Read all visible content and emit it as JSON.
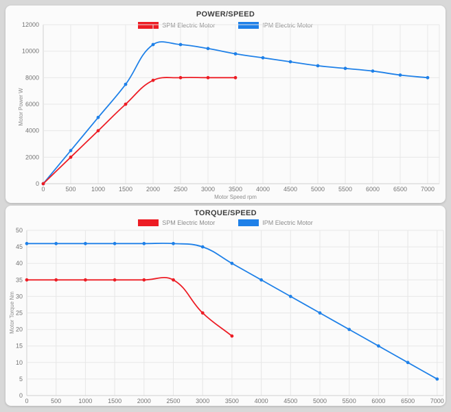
{
  "chart_data": [
    {
      "type": "line",
      "title": "POWER/SPEED",
      "xlabel": "Motor Speed rpm",
      "ylabel": "Motor Power W",
      "xlim": [
        0,
        7000
      ],
      "ylim": [
        0,
        12000
      ],
      "grid": true,
      "legend_position": "top",
      "x_ticks": [
        0,
        500,
        1000,
        1500,
        2000,
        2500,
        3000,
        3500,
        4000,
        4500,
        5000,
        5500,
        6000,
        6500,
        7000
      ],
      "y_ticks": [
        0,
        2000,
        4000,
        6000,
        8000,
        10000,
        12000
      ],
      "series": [
        {
          "name": "IPM Electric Motor",
          "color": "#1e80e8",
          "x": [
            0,
            500,
            1000,
            1500,
            2000,
            2500,
            3000,
            3500,
            4000,
            4500,
            5000,
            5500,
            6000,
            6500,
            7000
          ],
          "y": [
            0,
            2500,
            5000,
            7500,
            10500,
            10500,
            10200,
            9800,
            9500,
            9200,
            8900,
            8700,
            8500,
            8200,
            8000
          ]
        },
        {
          "name": "SPM Electric Motor",
          "color": "#ed1c24",
          "x": [
            0,
            500,
            1000,
            1500,
            2000,
            2500,
            3000,
            3500
          ],
          "y": [
            0,
            2000,
            4000,
            6000,
            7800,
            8000,
            8000,
            8000
          ]
        }
      ]
    },
    {
      "type": "line",
      "title": "TORQUE/SPEED",
      "xlabel": "",
      "ylabel": "Motor Torque Nm",
      "xlim": [
        0,
        7000
      ],
      "ylim": [
        0,
        50
      ],
      "grid": true,
      "legend_position": "top",
      "x_ticks": [
        0,
        500,
        1000,
        1500,
        2000,
        2500,
        3000,
        3500,
        4000,
        4500,
        5000,
        5500,
        6000,
        6500,
        7000
      ],
      "y_ticks": [
        0,
        5,
        10,
        15,
        20,
        25,
        30,
        35,
        40,
        45,
        50
      ],
      "series": [
        {
          "name": "IPM Electric Motor",
          "color": "#1e80e8",
          "x": [
            0,
            500,
            1000,
            1500,
            2000,
            2500,
            3000,
            3500,
            4000,
            4500,
            5000,
            5500,
            6000,
            6500,
            7000
          ],
          "y": [
            46,
            46,
            46,
            46,
            46,
            46,
            45,
            40,
            35,
            30,
            25,
            20,
            15,
            10,
            5
          ]
        },
        {
          "name": "SPM Electric Motor",
          "color": "#ed1c24",
          "x": [
            0,
            500,
            1000,
            1500,
            2000,
            2500,
            3000,
            3500
          ],
          "y": [
            35,
            35,
            35,
            35,
            35,
            35,
            25,
            18
          ]
        }
      ]
    }
  ],
  "legend": {
    "spm_label": "SPM Electric Motor",
    "ipm_label": "IPM Electric Motor",
    "spm_color": "#ed1c24",
    "ipm_color": "#1e80e8"
  }
}
